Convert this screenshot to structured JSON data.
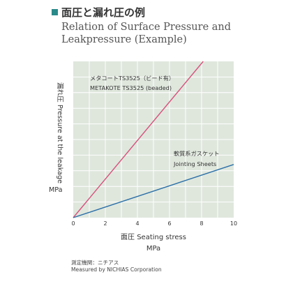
{
  "header": {
    "title_jp": "面圧と漏れ圧の例",
    "title_en_line1": "Relation of Surface Pressure and",
    "title_en_line2": "Leakpressure (Example)"
  },
  "colors": {
    "plot_background": "#dfe7dd",
    "grid": "#ffffff",
    "accent_marker": "#2a8a8a",
    "metakote_line": "#d9507c",
    "jointing_line": "#2a6fa8"
  },
  "chart_data": {
    "type": "line",
    "title": "",
    "xlabel": "面圧 Seating stress",
    "xlabel_unit": "MPa",
    "ylabel": "漏れ圧 Pressure at the leakage",
    "ylabel_unit": "MPa",
    "x_ticks": [
      0,
      2,
      4,
      6,
      8,
      10
    ],
    "xlim": [
      0,
      10
    ],
    "y_axis_tick_labels_shown": false,
    "grid": true,
    "series": [
      {
        "name": "METAKOTE TS3525 (beaded)",
        "label_jp": "メタコートTS3525（ビード有）",
        "label_en": "METAKOTE TS3525 (beaded)",
        "color": "#d9507c",
        "x": [
          0,
          8.1
        ],
        "y": [
          0,
          1.0
        ]
      },
      {
        "name": "Jointing Sheets",
        "label_jp": "軟質系ガスケット",
        "label_en": "Jointing Sheets",
        "color": "#2a6fa8",
        "x": [
          0,
          10
        ],
        "y": [
          0,
          0.34
        ]
      }
    ]
  },
  "footer": {
    "line1": "測定機関：ニチアス",
    "line2": "Measured by NICHIAS Corporation"
  }
}
